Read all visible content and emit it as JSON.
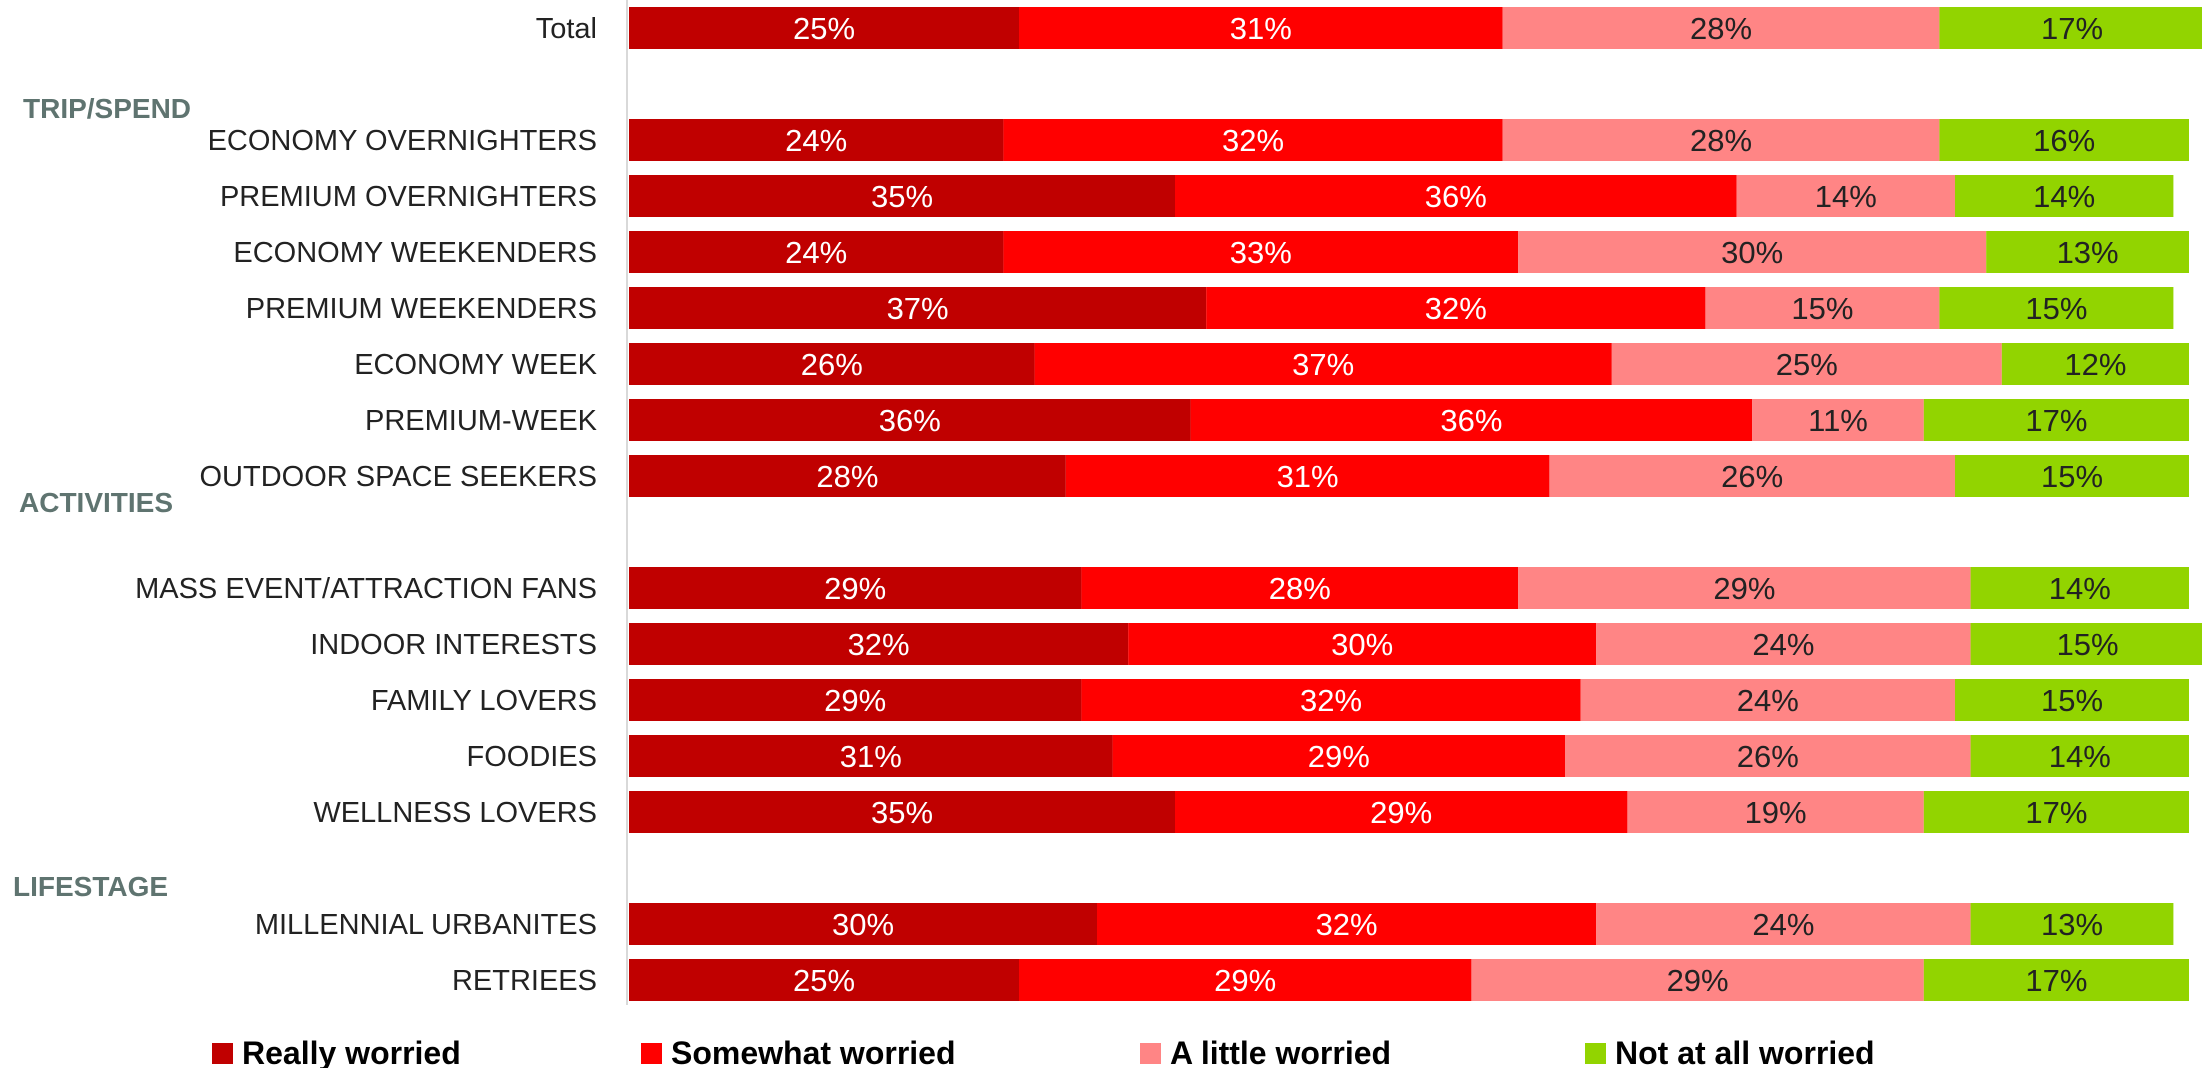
{
  "chart_data": {
    "type": "bar",
    "orientation": "horizontal",
    "stacked": true,
    "legend_position": "bottom",
    "colors": {
      "Really worried": "#c00000",
      "Somewhat worried": "#ff0000",
      "A little worried": "#ff8585",
      "Not at all worried": "#92d400"
    },
    "label_colors": {
      "Really worried": "#ffffff",
      "Somewhat worried": "#ffffff",
      "A little worried": "#222222",
      "Not at all worried": "#222222"
    },
    "sections": [
      "TRIP/SPEND",
      "ACTIVITIES",
      "LIFESTAGE"
    ],
    "categories": [
      "Total",
      "ECONOMY OVERNIGHTERS",
      "PREMIUM OVERNIGHTERS",
      "ECONOMY WEEKENDERS",
      "PREMIUM WEEKENDERS",
      "ECONOMY WEEK",
      "PREMIUM-WEEK",
      "OUTDOOR SPACE SEEKERS",
      "MASS EVENT/ATTRACTION FANS",
      "INDOOR INTERESTS",
      "FAMILY LOVERS",
      "FOODIES",
      "WELLNESS LOVERS",
      "MILLENNIAL URBANITES",
      "RETRIEES"
    ],
    "series": [
      {
        "name": "Really worried",
        "values": [
          25,
          24,
          35,
          24,
          37,
          26,
          36,
          28,
          29,
          32,
          29,
          31,
          35,
          30,
          25
        ]
      },
      {
        "name": "Somewhat worried",
        "values": [
          31,
          32,
          36,
          33,
          32,
          37,
          36,
          31,
          28,
          30,
          32,
          29,
          29,
          32,
          29
        ]
      },
      {
        "name": "A little worried",
        "values": [
          28,
          28,
          14,
          30,
          15,
          25,
          11,
          26,
          29,
          24,
          24,
          26,
          19,
          24,
          29
        ]
      },
      {
        "name": "Not at all worried",
        "values": [
          17,
          16,
          14,
          13,
          15,
          12,
          17,
          15,
          14,
          15,
          15,
          14,
          17,
          13,
          17
        ]
      }
    ],
    "value_suffix": "%",
    "title": "",
    "xlabel": "",
    "ylabel": ""
  }
}
